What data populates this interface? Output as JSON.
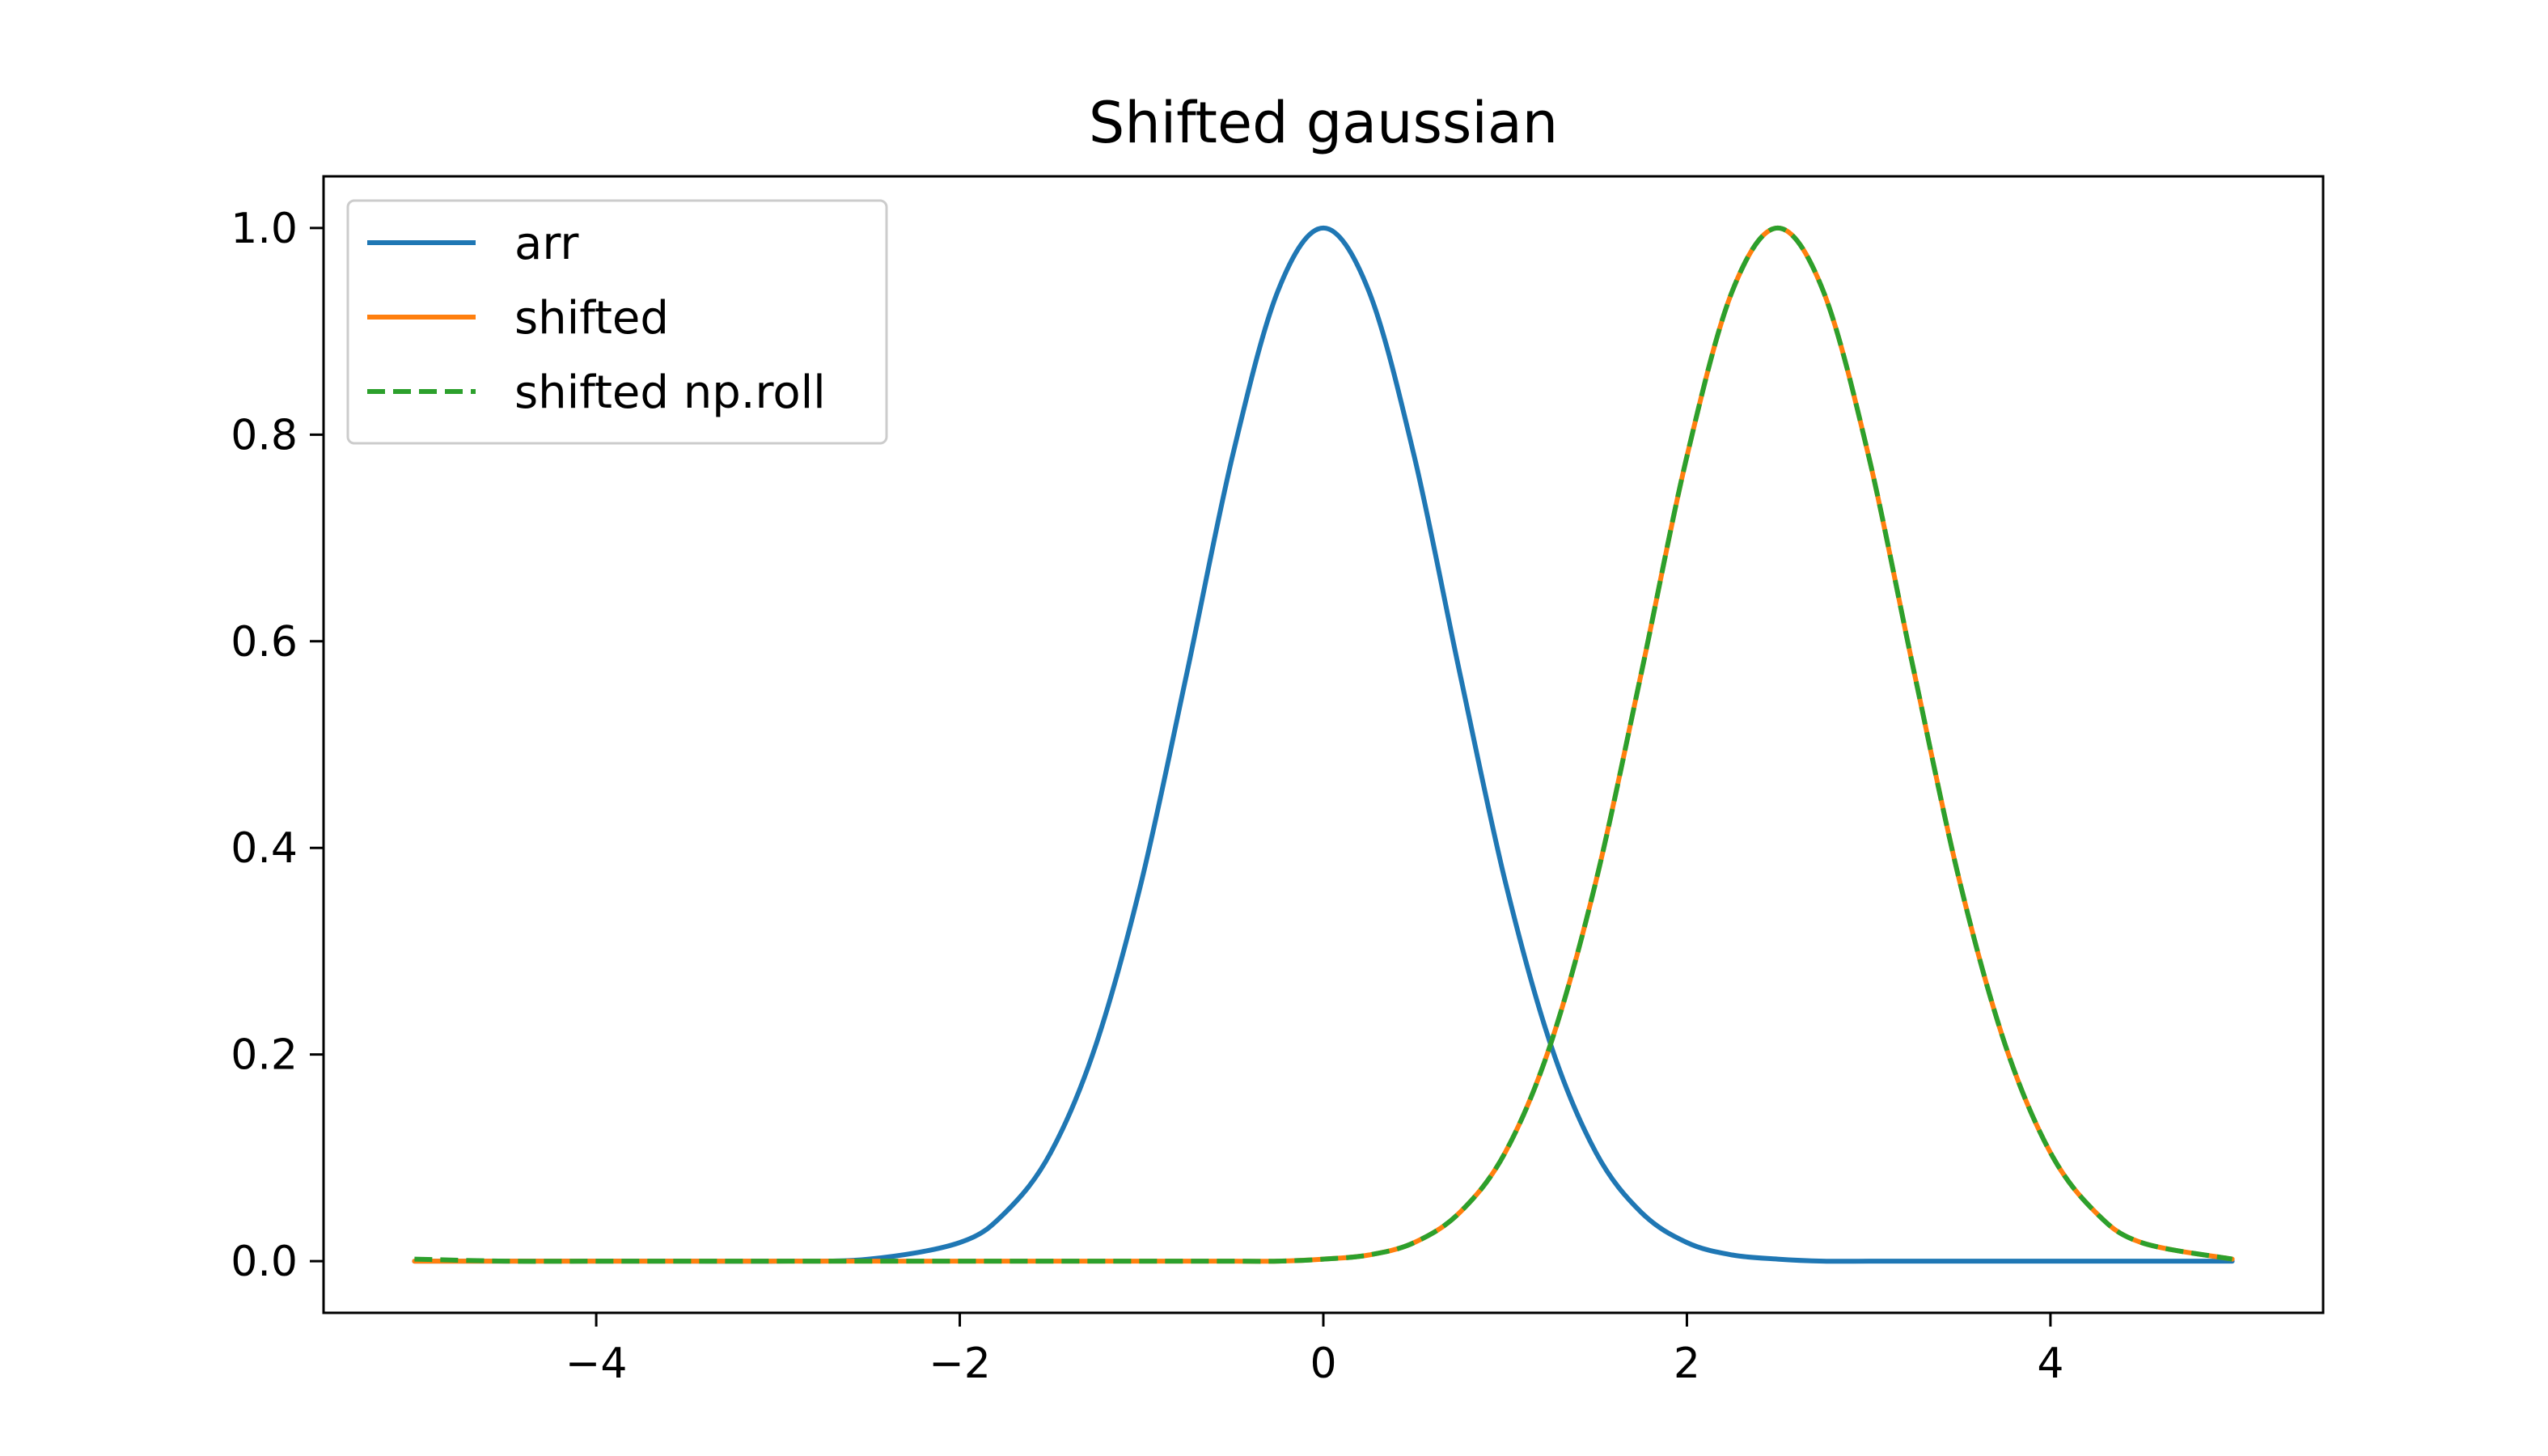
{
  "chart_data": {
    "type": "line",
    "title": "Shifted gaussian",
    "xlabel": "",
    "ylabel": "",
    "xlim": [
      -5.5,
      5.5
    ],
    "ylim": [
      -0.05,
      1.05
    ],
    "xticks": [
      -4,
      -2,
      0,
      2,
      4
    ],
    "xtick_labels": [
      "−4",
      "−2",
      "0",
      "2",
      "4"
    ],
    "yticks": [
      0.0,
      0.2,
      0.4,
      0.6,
      0.8,
      1.0
    ],
    "ytick_labels": [
      "0.0",
      "0.2",
      "0.4",
      "0.6",
      "0.8",
      "1.0"
    ],
    "grid": false,
    "legend_position": "top-left",
    "x": [
      -5.0,
      -4.5,
      -4.0,
      -3.5,
      -3.0,
      -2.5,
      -2.0,
      -1.75,
      -1.5,
      -1.25,
      -1.0,
      -0.75,
      -0.5,
      -0.25,
      0.0,
      0.25,
      0.5,
      0.75,
      1.0,
      1.25,
      1.5,
      1.75,
      2.0,
      2.25,
      2.5,
      2.75,
      3.0,
      3.25,
      3.5,
      3.75,
      4.0,
      4.25,
      4.5,
      5.0
    ],
    "series": [
      {
        "name": "arr",
        "color": "#1f77b4",
        "style": "solid",
        "values": [
          0.0,
          0.0,
          0.0,
          0.0,
          0.0,
          0.002,
          0.018,
          0.047,
          0.105,
          0.21,
          0.368,
          0.57,
          0.779,
          0.939,
          1.0,
          0.939,
          0.779,
          0.57,
          0.368,
          0.21,
          0.105,
          0.047,
          0.018,
          0.006,
          0.002,
          0.0,
          0.0,
          0.0,
          0.0,
          0.0,
          0.0,
          0.0,
          0.0,
          0.0
        ]
      },
      {
        "name": "shifted",
        "color": "#ff7f0e",
        "style": "solid",
        "values": [
          0.0,
          0.0,
          0.0,
          0.0,
          0.0,
          0.0,
          0.0,
          0.0,
          0.0,
          0.0,
          0.0,
          0.0,
          0.0,
          0.0,
          0.002,
          0.006,
          0.018,
          0.047,
          0.105,
          0.21,
          0.368,
          0.57,
          0.779,
          0.939,
          1.0,
          0.939,
          0.779,
          0.57,
          0.368,
          0.21,
          0.105,
          0.047,
          0.018,
          0.002
        ]
      },
      {
        "name": "shifted np.roll",
        "color": "#2ca02c",
        "style": "dashed",
        "values": [
          0.002,
          0.0,
          0.0,
          0.0,
          0.0,
          0.0,
          0.0,
          0.0,
          0.0,
          0.0,
          0.0,
          0.0,
          0.0,
          0.0,
          0.002,
          0.006,
          0.018,
          0.047,
          0.105,
          0.21,
          0.368,
          0.57,
          0.779,
          0.939,
          1.0,
          0.939,
          0.779,
          0.57,
          0.368,
          0.21,
          0.105,
          0.047,
          0.018,
          0.002
        ]
      }
    ]
  }
}
